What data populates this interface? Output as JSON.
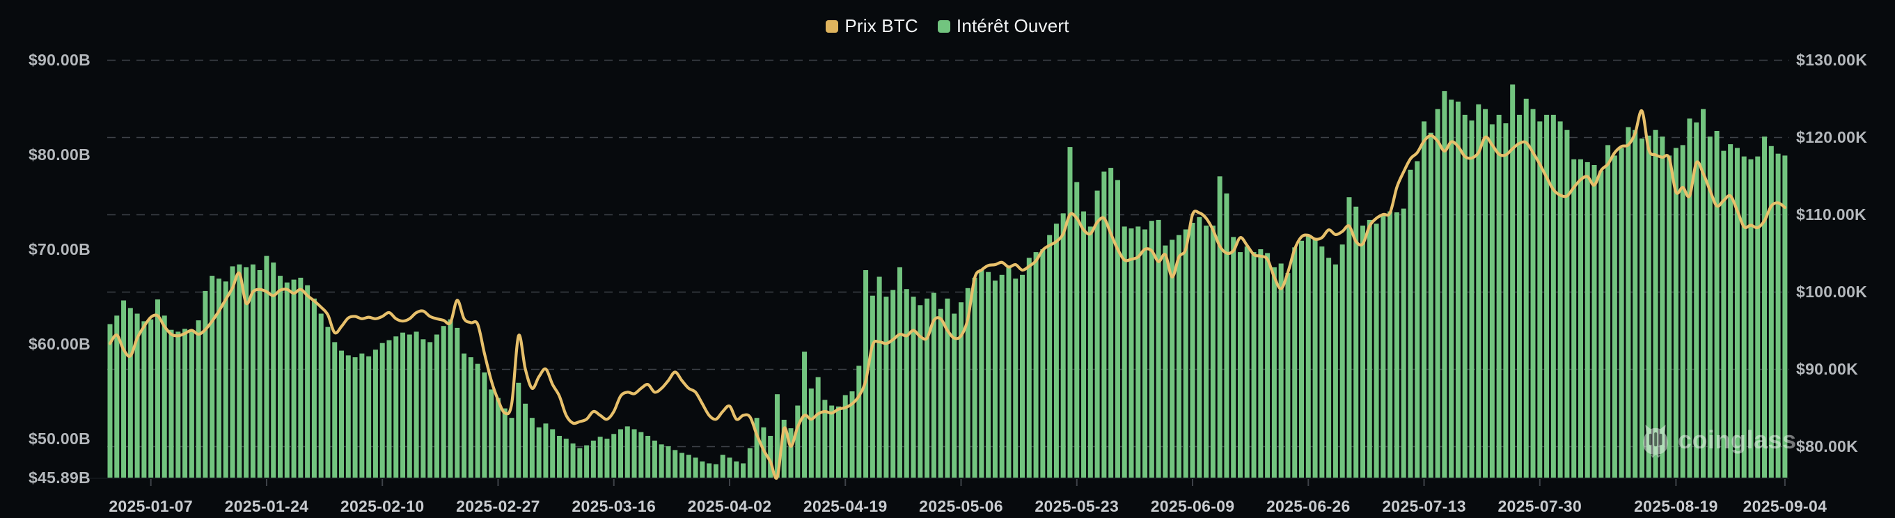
{
  "legend": {
    "items": [
      {
        "label": "Prix BTC",
        "color": "#dfb45e"
      },
      {
        "label": "Intérêt Ouvert",
        "color": "#72c47f"
      }
    ]
  },
  "watermark": {
    "text": "coinglass"
  },
  "chart_data": {
    "type": "combo",
    "title": "",
    "x_axis": {
      "start_date": "2025-01-01",
      "end_date": "2025-09-04",
      "days_total": 247,
      "ticks": [
        {
          "label": "2025-01-07",
          "day": 6
        },
        {
          "label": "2025-01-24",
          "day": 23
        },
        {
          "label": "2025-02-10",
          "day": 40
        },
        {
          "label": "2025-02-27",
          "day": 57
        },
        {
          "label": "2025-03-16",
          "day": 74
        },
        {
          "label": "2025-04-02",
          "day": 91
        },
        {
          "label": "2025-04-19",
          "day": 108
        },
        {
          "label": "2025-05-06",
          "day": 125
        },
        {
          "label": "2025-05-23",
          "day": 142
        },
        {
          "label": "2025-06-09",
          "day": 159
        },
        {
          "label": "2025-06-26",
          "day": 176
        },
        {
          "label": "2025-07-13",
          "day": 193
        },
        {
          "label": "2025-07-30",
          "day": 210
        },
        {
          "label": "2025-08-19",
          "day": 230
        },
        {
          "label": "2025-09-04",
          "day": 246
        }
      ]
    },
    "left_axis": {
      "unit": "USD billions (open interest)",
      "min": 45.89,
      "max": 90,
      "ticks": [
        {
          "label": "$90.00B",
          "value": 90
        },
        {
          "label": "$80.00B",
          "value": 80
        },
        {
          "label": "$70.00B",
          "value": 70
        },
        {
          "label": "$60.00B",
          "value": 60
        },
        {
          "label": "$50.00B",
          "value": 50
        },
        {
          "label": "$45.89B",
          "value": 45.89
        }
      ]
    },
    "right_axis": {
      "unit": "USD thousands (BTC price)",
      "ticks": [
        {
          "label": "$130.00K",
          "value": 130
        },
        {
          "label": "$120.00K",
          "value": 120
        },
        {
          "label": "$110.00K",
          "value": 110
        },
        {
          "label": "$100.00K",
          "value": 100
        },
        {
          "label": "$90.00K",
          "value": 90
        },
        {
          "label": "$80.00K",
          "value": 80
        }
      ]
    },
    "grid": {
      "show": true,
      "color": "#3e4248",
      "dash": [
        12,
        9
      ],
      "follows": "right_axis"
    },
    "series": [
      {
        "name": "Intérêt Ouvert",
        "type": "bar",
        "axis": "left",
        "color": "#72c47f",
        "values": [
          62.1,
          63.0,
          64.6,
          63.8,
          63.2,
          62.4,
          62.6,
          64.7,
          63.0,
          61.5,
          61.3,
          61.6,
          61.4,
          62.5,
          65.6,
          67.2,
          66.9,
          66.6,
          68.2,
          68.4,
          68.1,
          68.4,
          67.8,
          69.3,
          68.6,
          67.2,
          66.5,
          66.8,
          67.0,
          66.2,
          64.8,
          63.2,
          61.8,
          60.2,
          59.3,
          58.8,
          58.6,
          59.0,
          58.7,
          59.4,
          60.1,
          60.4,
          60.8,
          61.2,
          61.0,
          61.3,
          60.5,
          60.2,
          61.0,
          61.9,
          62.6,
          61.7,
          59.0,
          58.6,
          57.9,
          57.0,
          55.2,
          54.3,
          53.2,
          52.2,
          55.9,
          53.7,
          52.2,
          51.2,
          51.6,
          51.0,
          50.3,
          50.0,
          49.5,
          49.0,
          49.3,
          49.8,
          50.2,
          50.0,
          50.5,
          51.0,
          51.3,
          51.0,
          50.7,
          50.3,
          49.8,
          49.4,
          49.2,
          48.8,
          48.5,
          48.3,
          48.0,
          47.6,
          47.4,
          47.3,
          48.3,
          48.0,
          47.6,
          47.4,
          49.0,
          52.2,
          51.2,
          50.3,
          54.7,
          52.0,
          51.1,
          53.5,
          59.2,
          55.3,
          56.5,
          54.1,
          53.5,
          53.4,
          54.6,
          55.0,
          57.7,
          67.8,
          65.1,
          67.1,
          65.0,
          65.7,
          68.1,
          65.8,
          65.0,
          64.1,
          64.8,
          65.4,
          63.7,
          64.8,
          63.2,
          64.4,
          65.9,
          67.0,
          67.9,
          67.6,
          66.7,
          67.3,
          68.1,
          66.9,
          67.3,
          69.1,
          69.7,
          70.0,
          71.5,
          72.7,
          73.8,
          80.8,
          77.1,
          74.0,
          72.4,
          76.2,
          78.2,
          78.6,
          77.3,
          72.4,
          72.2,
          72.4,
          72.1,
          73.0,
          73.1,
          70.4,
          71.0,
          71.5,
          72.1,
          72.8,
          73.4,
          72.5,
          72.5,
          77.7,
          75.9,
          71.3,
          69.7,
          70.3,
          69.7,
          70.0,
          69.6,
          68.1,
          68.5,
          67.5,
          70.2,
          70.9,
          71.5,
          71.0,
          70.3,
          69.1,
          68.4,
          70.5,
          75.5,
          74.5,
          72.5,
          73.1,
          72.7,
          73.7,
          74.0,
          73.9,
          74.3,
          78.4,
          79.3,
          83.5,
          82.3,
          84.8,
          86.7,
          85.8,
          85.6,
          84.2,
          83.6,
          85.3,
          84.8,
          83.2,
          84.2,
          83.3,
          87.4,
          84.2,
          85.9,
          84.8,
          83.5,
          84.2,
          84.2,
          83.5,
          82.6,
          79.5,
          79.5,
          79.2,
          78.9,
          78.3,
          81.0,
          79.9,
          80.7,
          82.9,
          82.6,
          81.7,
          82.0,
          82.6,
          81.9,
          79.9,
          80.7,
          81.0,
          83.8,
          83.4,
          84.8,
          81.9,
          82.5,
          80.4,
          81.1,
          80.7,
          79.8,
          79.5,
          79.8,
          81.9,
          80.9,
          80.1,
          79.9
        ]
      },
      {
        "name": "Prix BTC",
        "type": "line",
        "axis": "right",
        "color": "#e7c06b",
        "values": [
          93.3,
          94.4,
          92.5,
          91.7,
          94.0,
          95.5,
          96.7,
          96.9,
          95.5,
          94.5,
          94.3,
          94.6,
          95.0,
          94.5,
          95.1,
          96.2,
          97.5,
          99.0,
          100.5,
          102.4,
          98.5,
          100.0,
          100.3,
          100.0,
          99.5,
          100.2,
          100.3,
          99.8,
          100.3,
          99.5,
          98.8,
          98.0,
          97.0,
          94.7,
          95.5,
          96.6,
          96.8,
          96.5,
          96.7,
          96.5,
          96.8,
          97.3,
          96.5,
          96.2,
          96.5,
          97.3,
          97.5,
          96.8,
          96.5,
          96.3,
          96.0,
          98.9,
          96.5,
          96.0,
          95.8,
          92.0,
          88.5,
          86.0,
          84.3,
          85.5,
          94.3,
          90.0,
          87.5,
          89.0,
          90.0,
          88.0,
          86.5,
          84.0,
          83.0,
          83.2,
          83.5,
          84.5,
          84.0,
          83.5,
          84.5,
          86.5,
          87.0,
          86.8,
          87.5,
          88.0,
          87.0,
          87.5,
          88.5,
          89.6,
          88.5,
          87.5,
          87.0,
          85.5,
          84.0,
          83.5,
          84.5,
          85.2,
          83.5,
          84.0,
          83.8,
          81.5,
          79.5,
          78.0,
          76.0,
          82.3,
          80.0,
          82.5,
          84.0,
          83.5,
          84.2,
          84.5,
          84.3,
          84.8,
          85.0,
          85.5,
          86.5,
          88.5,
          93.1,
          93.5,
          93.3,
          93.8,
          94.5,
          94.3,
          95.0,
          94.2,
          94.0,
          96.3,
          96.5,
          95.0,
          94.0,
          94.3,
          96.5,
          101.8,
          102.8,
          103.4,
          103.5,
          103.8,
          103.2,
          103.5,
          102.8,
          103.3,
          104.0,
          105.4,
          106.0,
          106.5,
          107.5,
          110.0,
          109.5,
          108.0,
          107.5,
          109.0,
          109.5,
          107.5,
          105.5,
          104.1,
          104.2,
          104.5,
          105.5,
          105.3,
          103.9,
          104.8,
          101.9,
          104.5,
          105.5,
          110.0,
          110.2,
          109.5,
          108.0,
          105.9,
          105.0,
          105.3,
          107.0,
          106.0,
          104.8,
          104.6,
          104.2,
          101.9,
          100.4,
          102.5,
          105.5,
          107.1,
          107.3,
          106.8,
          107.0,
          108.0,
          107.4,
          107.8,
          108.5,
          106.5,
          106.2,
          108.5,
          109.5,
          110.0,
          110.2,
          113.5,
          115.5,
          117.2,
          118.0,
          119.5,
          120.2,
          119.5,
          118.2,
          119.4,
          118.8,
          117.5,
          117.3,
          118.0,
          120.0,
          119.0,
          117.8,
          117.7,
          118.5,
          119.2,
          119.3,
          118.0,
          116.5,
          114.8,
          113.2,
          112.5,
          112.4,
          113.5,
          114.5,
          114.9,
          113.8,
          115.7,
          116.5,
          118.0,
          118.8,
          119.0,
          120.5,
          123.4,
          118.4,
          117.7,
          117.4,
          117.3,
          112.9,
          113.5,
          112.4,
          116.7,
          115.3,
          113.1,
          111.1,
          111.8,
          112.4,
          110.5,
          108.4,
          108.6,
          108.3,
          109.2,
          111.1,
          111.5,
          110.9
        ]
      }
    ]
  }
}
